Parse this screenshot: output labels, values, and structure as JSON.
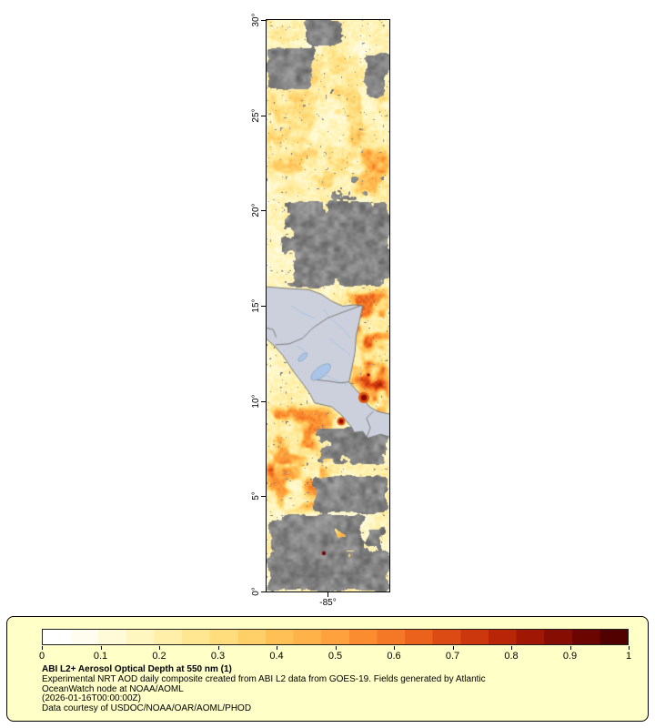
{
  "page": {
    "background": "#ffffff"
  },
  "map": {
    "x_tick_label": "-85°",
    "y_tick_labels": [
      "30°",
      "25°",
      "20°",
      "15°",
      "10°",
      "5°",
      "0°"
    ],
    "extent": {
      "lon_min": -88.2,
      "lon_max": -81.75,
      "lat_min": 0,
      "lat_max": 30
    },
    "colors": {
      "cloud_gray": "#8b8b8b",
      "land_fill": "#ccd0dc",
      "country_border": "#6a6a6a",
      "river": "#9fc0e2",
      "lake": "#a9c6e8",
      "coastline": "#6f6f6f"
    }
  },
  "colorbar": {
    "ticks": [
      "0",
      "0.1",
      "0.2",
      "0.3",
      "0.4",
      "0.5",
      "0.6",
      "0.7",
      "0.8",
      "0.9",
      "1"
    ],
    "stops": [
      "#ffffff",
      "#fffdf0",
      "#fffad8",
      "#fff6c0",
      "#ffefa8",
      "#ffe792",
      "#ffdc7c",
      "#ffcf68",
      "#ffc156",
      "#ffb248",
      "#ffa13c",
      "#fb8d30",
      "#f47826",
      "#ea621c",
      "#dd4b14",
      "#cc370d",
      "#b82607",
      "#a01803",
      "#860d01",
      "#6b0500",
      "#500100"
    ],
    "box_bg": "#ffffc8"
  },
  "legend": {
    "title": "ABI L2+ Aerosol Optical Depth at 550 nm (1)",
    "desc_line1": "Experimental NRT AOD daily composite created from ABI L2 data from GOES-19. Fields generated by Atlantic",
    "desc_line2": "OceanWatch node at NOAA/AOML",
    "timestamp": "(2026-01-16T00:00:00Z)",
    "courtesy": "Data courtesy of USDOC/NOAA/OAR/AOML/PHOD"
  }
}
